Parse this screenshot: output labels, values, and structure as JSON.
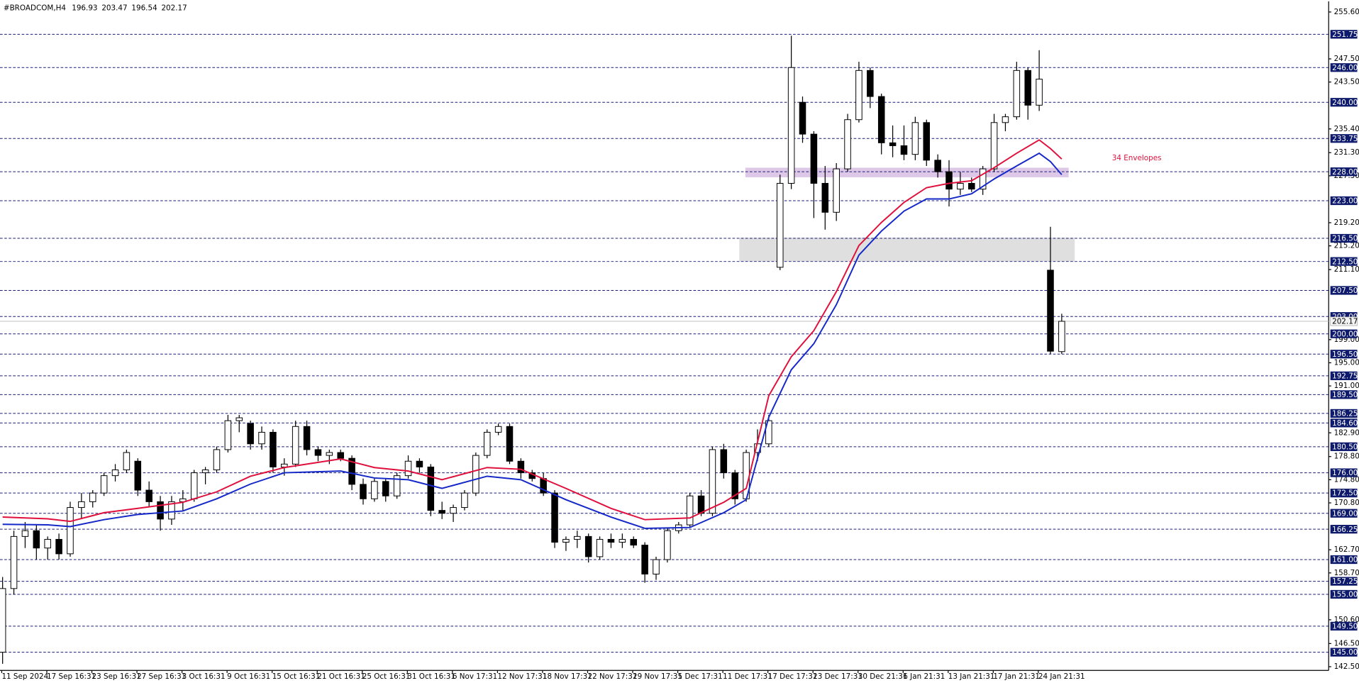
{
  "chart_data": {
    "type": "candlestick",
    "title": "#BROADCOM,H4",
    "annotation": "34 Envelopes",
    "categories": [
      "11 Sep 2024",
      null,
      null,
      null,
      "17 Sep 16:31",
      null,
      null,
      null,
      "23 Sep 16:31",
      null,
      null,
      null,
      "27 Sep 16:31",
      null,
      null,
      null,
      "3 Oct 16:31",
      null,
      null,
      null,
      "9 Oct 16:31",
      null,
      null,
      null,
      "15 Oct 16:31",
      null,
      null,
      null,
      "21 Oct 16:31",
      null,
      null,
      null,
      "25 Oct 16:31",
      null,
      null,
      null,
      "31 Oct 16:31",
      null,
      null,
      null,
      "6 Nov 17:31",
      null,
      null,
      null,
      "12 Nov 17:31",
      null,
      null,
      null,
      "18 Nov 17:31",
      null,
      null,
      null,
      "22 Nov 17:31",
      null,
      null,
      null,
      "29 Nov 17:31",
      null,
      null,
      null,
      "5 Dec 17:31",
      null,
      null,
      null,
      "11 Dec 17:31",
      null,
      null,
      null,
      "17 Dec 17:31",
      null,
      null,
      null,
      "23 Dec 17:31",
      null,
      null,
      null,
      "30 Dec 21:31",
      null,
      null,
      null,
      "6 Jan 21:31",
      null,
      null,
      null,
      "13 Jan 21:31",
      null,
      null,
      null,
      "17 Jan 21:31",
      null,
      null,
      null,
      "24 Jan 21:31",
      null,
      null
    ],
    "open": [
      145,
      156,
      165,
      166,
      163,
      164.5,
      162,
      170,
      171,
      172.5,
      175.5,
      176.5,
      178,
      173,
      171,
      168,
      171,
      171.5,
      176,
      176.5,
      180,
      185,
      184.5,
      181,
      183,
      177,
      177.5,
      184,
      180,
      179,
      179.5,
      178.5,
      174,
      171.5,
      174.5,
      172,
      175.5,
      178,
      177,
      169.5,
      169,
      170,
      172.5,
      179,
      183,
      184,
      178,
      176,
      175,
      172.5,
      164,
      164.5,
      165,
      161.5,
      164.5,
      164,
      164.5,
      163.5,
      158.5,
      161,
      166,
      167,
      172,
      169,
      180,
      176,
      171.5,
      179.5,
      181,
      211.5,
      226,
      240,
      234.5,
      226,
      221,
      228.5,
      237,
      245.5,
      241,
      233,
      232.5,
      231,
      236.5,
      230,
      228,
      225,
      226,
      225,
      228.5,
      236.5,
      237.5,
      245.5,
      239.5,
      211,
      196.93
    ],
    "high": [
      158,
      166,
      167.5,
      167,
      165,
      165.5,
      171,
      172.5,
      173,
      176,
      177.5,
      180,
      178.5,
      174.5,
      172,
      172,
      173,
      176.5,
      177,
      180.5,
      186,
      186,
      185,
      184,
      183.5,
      178.5,
      185,
      185,
      180.5,
      180,
      180,
      179,
      175,
      175,
      175,
      176,
      179,
      178.5,
      177.5,
      171,
      170.5,
      173,
      179.5,
      183.5,
      184.5,
      184.5,
      178.5,
      176.5,
      176,
      173,
      165,
      166,
      165.5,
      165,
      165.5,
      165.5,
      165,
      164,
      161.5,
      166.5,
      167.5,
      172.5,
      173,
      180.5,
      181,
      176.5,
      180,
      183.5,
      186,
      227.5,
      251.5,
      241,
      235,
      229,
      229.5,
      238,
      247,
      246,
      241.5,
      236,
      236,
      237.5,
      237,
      231,
      230,
      228,
      227,
      229,
      238,
      238,
      247,
      246,
      249,
      218.5,
      203.47
    ],
    "low": [
      143,
      155,
      163,
      161,
      161,
      161,
      161.5,
      168,
      170,
      172,
      174.5,
      176,
      172,
      170,
      166,
      167,
      169.5,
      171,
      174,
      176,
      179.5,
      183,
      180,
      180,
      176,
      175.5,
      177,
      179,
      178,
      177.5,
      178,
      173,
      170.5,
      171,
      171,
      171.5,
      175,
      176,
      168.5,
      168,
      167.5,
      169.5,
      172,
      178.5,
      182.5,
      177.5,
      175,
      174.5,
      172,
      163,
      162.5,
      163,
      160.5,
      161,
      163,
      163,
      163,
      157,
      157.5,
      160.5,
      165.5,
      166.5,
      168.5,
      168.5,
      175,
      170.5,
      171,
      178,
      180.5,
      211,
      225,
      233,
      220,
      218,
      219.5,
      228,
      236.5,
      239,
      231,
      230.5,
      230,
      230,
      229,
      227,
      222,
      224,
      224.5,
      224,
      228,
      235,
      237,
      237,
      238.5,
      196.5,
      196.54
    ],
    "close": [
      156,
      165,
      166,
      163,
      164.5,
      162,
      170,
      171,
      172.5,
      175.5,
      176.5,
      179.5,
      173,
      171,
      168,
      171,
      171.5,
      176,
      176.5,
      180,
      185,
      185.5,
      181,
      183,
      177,
      177.5,
      184,
      180,
      179,
      179.5,
      178.5,
      174,
      171.5,
      174.5,
      172,
      175.5,
      178,
      177,
      169.5,
      169,
      170,
      172.5,
      179,
      183,
      184,
      178,
      176,
      175,
      172.5,
      164,
      164.5,
      165,
      161.5,
      164.5,
      164,
      164.5,
      163.5,
      158.5,
      161,
      166,
      167,
      172,
      169,
      180,
      176,
      171.5,
      179.5,
      181,
      185,
      226,
      246,
      234.5,
      226,
      221,
      228.5,
      237,
      245.5,
      241,
      233,
      232.5,
      231,
      236.5,
      230,
      228,
      225,
      226,
      225,
      228.5,
      236.5,
      237.5,
      245.5,
      239.5,
      244,
      197,
      202.17
    ],
    "series": [
      {
        "color": "#e0103c",
        "x": [
          0,
          4,
          6,
          9,
          12,
          16,
          19,
          22,
          25,
          30,
          33,
          36,
          39,
          43,
          46,
          50,
          54,
          57,
          61,
          64,
          66,
          68,
          70,
          72,
          74,
          76,
          78,
          80,
          82,
          84,
          86,
          88,
          90,
          92,
          93,
          94
        ],
        "values": [
          168.35,
          168.05,
          167.6,
          169.1,
          169.85,
          170.9,
          172.7,
          175.4,
          176.9,
          178.4,
          176.9,
          176.3,
          174.8,
          176.9,
          176.6,
          173.3,
          169.85,
          167.9,
          168.2,
          170.9,
          173.3,
          189.3,
          196.05,
          200.55,
          207.3,
          215.25,
          219.25,
          222.7,
          225.25,
          226.0,
          226.45,
          228.7,
          231.2,
          233.5,
          232.0,
          230.2
        ]
      },
      {
        "color": "#1428c8",
        "x": [
          0,
          4,
          6,
          9,
          12,
          16,
          19,
          22,
          25,
          30,
          33,
          36,
          39,
          43,
          46,
          50,
          54,
          57,
          61,
          64,
          66,
          68,
          70,
          72,
          74,
          76,
          78,
          80,
          82,
          84,
          86,
          88,
          90,
          92,
          93,
          94
        ],
        "values": [
          167.1,
          167.0,
          166.7,
          167.9,
          168.8,
          169.4,
          171.5,
          174.05,
          176.0,
          176.3,
          175.1,
          174.8,
          173.3,
          175.4,
          174.8,
          171.35,
          168.35,
          166.4,
          166.55,
          169.1,
          171.35,
          185.6,
          193.8,
          198.3,
          205.05,
          213.6,
          217.75,
          221.2,
          223.3,
          223.3,
          224.2,
          226.75,
          229.0,
          231.2,
          229.75,
          227.5
        ]
      }
    ],
    "zones": [
      {
        "from": 227.05,
        "to": 228.7,
        "color": "#d9c2e6"
      },
      {
        "from": 212.5,
        "to": 216.6,
        "color": "#dcdcdc"
      }
    ],
    "levels": [
      {
        "value": 251.75,
        "label": "251.75"
      },
      {
        "value": 246,
        "label": "246.00"
      },
      {
        "value": 240,
        "label": "240.00"
      },
      {
        "value": 233.75,
        "label": "233.75"
      },
      {
        "value": 228,
        "label": "228.00"
      },
      {
        "value": 223,
        "label": "223.00"
      },
      {
        "value": 216.5,
        "label": "216.50"
      },
      {
        "value": 212.5,
        "label": "212.50"
      },
      {
        "value": 207.5,
        "label": "207.50"
      },
      {
        "value": 203,
        "label": "203.00"
      },
      {
        "value": 200,
        "label": "200.00"
      },
      {
        "value": 196.5,
        "label": "196.50"
      },
      {
        "value": 192.75,
        "label": "192.75"
      },
      {
        "value": 189.5,
        "label": "189.50"
      },
      {
        "value": 186.25,
        "label": "186.25"
      },
      {
        "value": 184.6,
        "label": "184.60"
      },
      {
        "value": 180.5,
        "label": "180.50"
      },
      {
        "value": 176,
        "label": "176.00"
      },
      {
        "value": 172.5,
        "label": "172.50"
      },
      {
        "value": 169,
        "label": "169.00"
      },
      {
        "value": 166.25,
        "label": "166.25"
      },
      {
        "value": 161,
        "label": "161.00"
      },
      {
        "value": 157.25,
        "label": "157.25"
      },
      {
        "value": 155,
        "label": "155.00"
      },
      {
        "value": 149.5,
        "label": "149.50"
      },
      {
        "value": 145,
        "label": "145.00"
      }
    ],
    "ylim": [
      141.86,
      257.44
    ],
    "yticks": [
      {
        "value": 255.6,
        "label": "255.60"
      },
      {
        "value": 247.5,
        "label": "247.50"
      },
      {
        "value": 243.5,
        "label": "243.50"
      },
      {
        "value": 235.4,
        "label": "235.40"
      },
      {
        "value": 231.3,
        "label": "231.30"
      },
      {
        "value": 227.3,
        "label": "227.30"
      },
      {
        "value": 219.2,
        "label": "219.20"
      },
      {
        "value": 215.2,
        "label": "215.20"
      },
      {
        "value": 211.1,
        "label": "211.10"
      },
      {
        "value": 199,
        "label": "199.00"
      },
      {
        "value": 195,
        "label": "195.00"
      },
      {
        "value": 191,
        "label": "191.00"
      },
      {
        "value": 182.9,
        "label": "182.90"
      },
      {
        "value": 178.8,
        "label": "178.80"
      },
      {
        "value": 174.8,
        "label": "174.80"
      },
      {
        "value": 170.8,
        "label": "170.80"
      },
      {
        "value": 162.7,
        "label": "162.70"
      },
      {
        "value": 158.7,
        "label": "158.70"
      },
      {
        "value": 150.6,
        "label": "150.60"
      },
      {
        "value": 146.5,
        "label": "146.50"
      },
      {
        "value": 142.5,
        "label": "142.50"
      }
    ]
  }
}
